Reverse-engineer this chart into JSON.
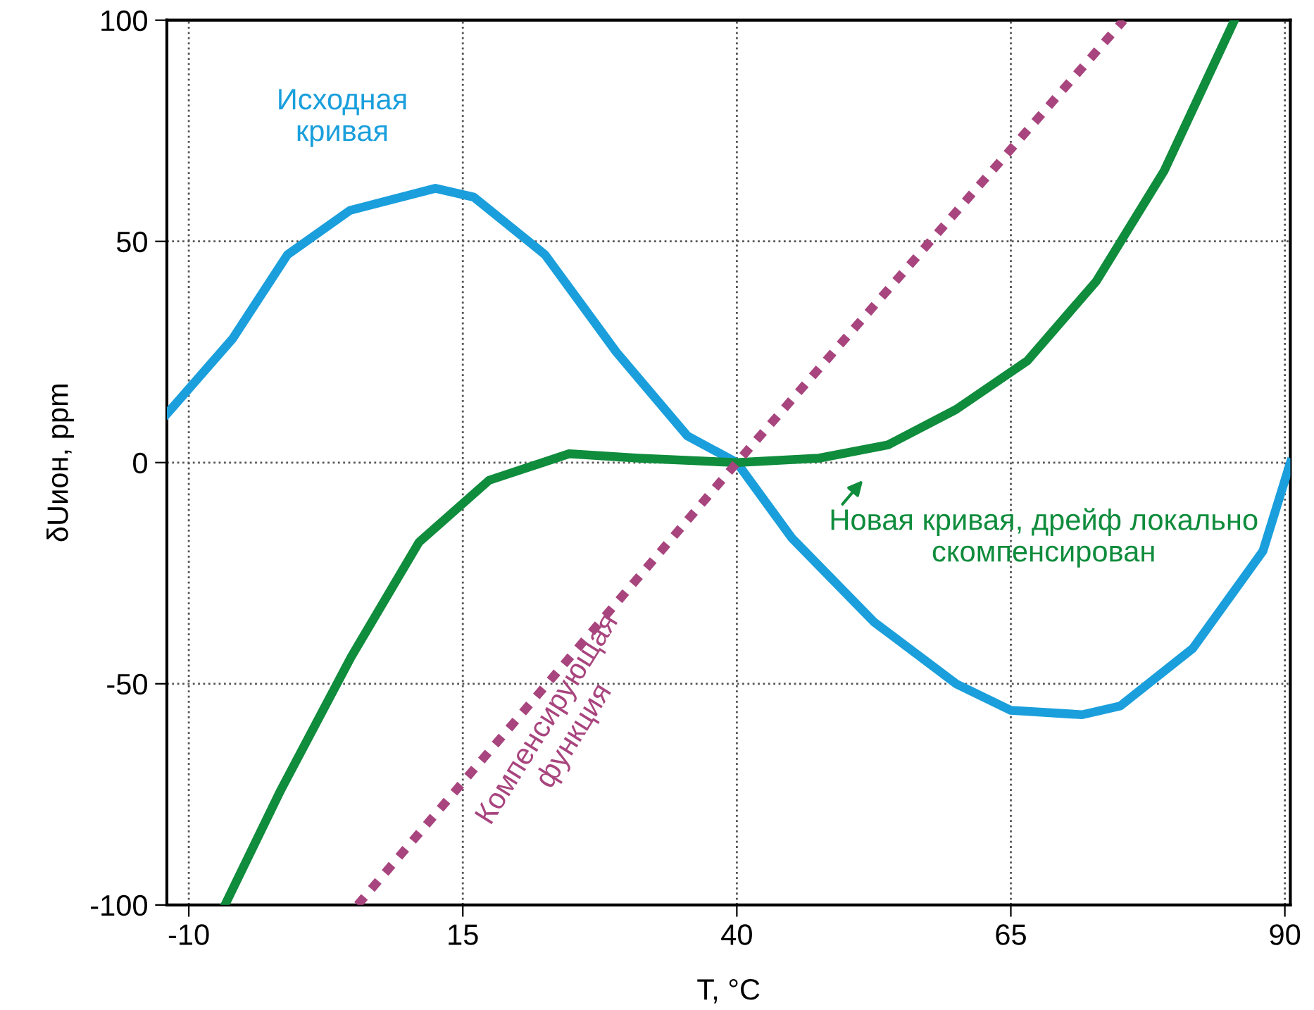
{
  "chart_data": {
    "type": "line",
    "xlabel": "T, °C",
    "ylabel": "δUион, ppm",
    "xlim": [
      -12,
      90.5
    ],
    "ylim": [
      -100,
      100
    ],
    "xticks": [
      -10,
      15,
      40,
      65,
      90
    ],
    "yticks": [
      -100,
      -50,
      0,
      50,
      100
    ],
    "grid": true,
    "line_style": "solid",
    "marker": "none",
    "series": [
      {
        "name": "Исходная кривая",
        "color": "#1a9fdc",
        "x": [
          -12,
          -6,
          -1,
          4.7,
          12.5,
          16,
          22.5,
          29,
          35.5,
          40,
          45,
          52.5,
          60,
          65,
          71.5,
          75,
          81.6,
          88,
          90.5
        ],
        "values": [
          11,
          28,
          47,
          57,
          62,
          60,
          47,
          25,
          6,
          0,
          -17,
          -36,
          -50,
          -56,
          -57,
          -55,
          -42,
          -20,
          0
        ]
      },
      {
        "name": "Новая кривая, дрейф локально скомпенсирован",
        "color": "#0f8c3c",
        "x": [
          -6.7,
          -1.6,
          4.8,
          11,
          17.4,
          24.7,
          31,
          40,
          47.5,
          53.8,
          60,
          66.5,
          72.8,
          79,
          85.4
        ],
        "values": [
          -100,
          -74,
          -44,
          -18,
          -4,
          2,
          1,
          0,
          1,
          4,
          12,
          23,
          41,
          66,
          100
        ]
      },
      {
        "name": "Компенсирующая функция",
        "color": "#a8457e",
        "line_style": "dashed",
        "x": [
          5.4,
          40,
          75.3
        ],
        "values": [
          -100,
          0,
          100
        ]
      }
    ]
  }
}
